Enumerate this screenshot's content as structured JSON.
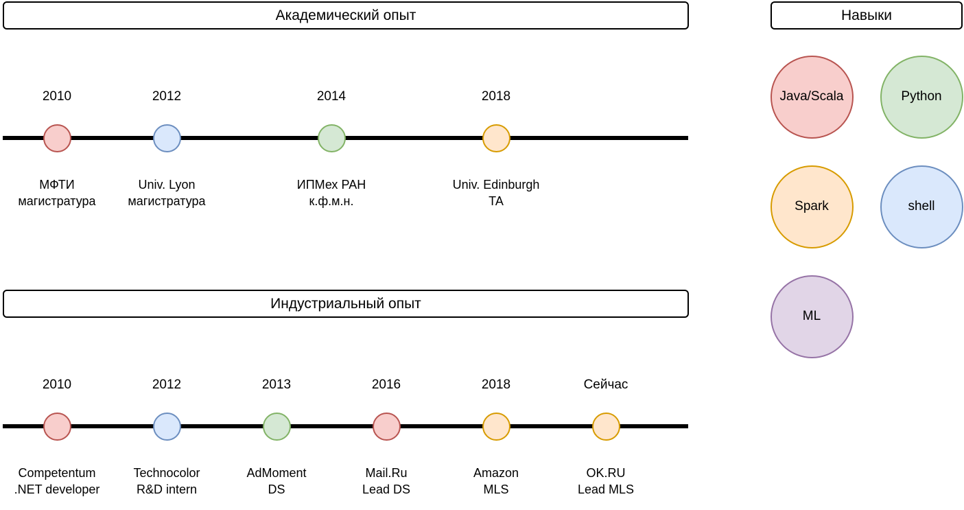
{
  "colors": {
    "red": {
      "fill": "#f8cecc",
      "stroke": "#b85450"
    },
    "blue": {
      "fill": "#dae8fc",
      "stroke": "#6c8ebf"
    },
    "green": {
      "fill": "#d5e8d4",
      "stroke": "#82b366"
    },
    "orange": {
      "fill": "#ffe6cc",
      "stroke": "#d79b00"
    },
    "purple": {
      "fill": "#e1d5e7",
      "stroke": "#9673a6"
    }
  },
  "academic": {
    "title": "Академический опыт",
    "events": [
      {
        "year": "2010",
        "line1": "МФТИ",
        "line2": "магистратура",
        "color": "red"
      },
      {
        "year": "2012",
        "line1": "Univ. Lyon",
        "line2": "магистратура",
        "color": "blue"
      },
      {
        "year": "2014",
        "line1": "ИПМех РАН",
        "line2": "к.ф.м.н.",
        "color": "green"
      },
      {
        "year": "2018",
        "line1": "Univ. Edinburgh",
        "line2": "TA",
        "color": "orange"
      }
    ]
  },
  "industrial": {
    "title": "Индустриальный опыт",
    "events": [
      {
        "year": "2010",
        "line1": "Competentum",
        "line2": ".NET developer",
        "color": "red"
      },
      {
        "year": "2012",
        "line1": "Technocolor",
        "line2": "R&D intern",
        "color": "blue"
      },
      {
        "year": "2013",
        "line1": "AdMoment",
        "line2": "DS",
        "color": "green"
      },
      {
        "year": "2016",
        "line1": "Mail.Ru",
        "line2": "Lead DS",
        "color": "red"
      },
      {
        "year": "2018",
        "line1": "Amazon",
        "line2": "MLS",
        "color": "orange"
      },
      {
        "year": "Сейчас",
        "line1": "OK.RU",
        "line2": "Lead MLS",
        "color": "orange"
      }
    ]
  },
  "skills": {
    "title": "Навыки",
    "items": [
      {
        "label": "Java/Scala",
        "color": "red"
      },
      {
        "label": "Python",
        "color": "green"
      },
      {
        "label": "Spark",
        "color": "orange"
      },
      {
        "label": "shell",
        "color": "blue"
      },
      {
        "label": "ML",
        "color": "purple"
      }
    ]
  }
}
